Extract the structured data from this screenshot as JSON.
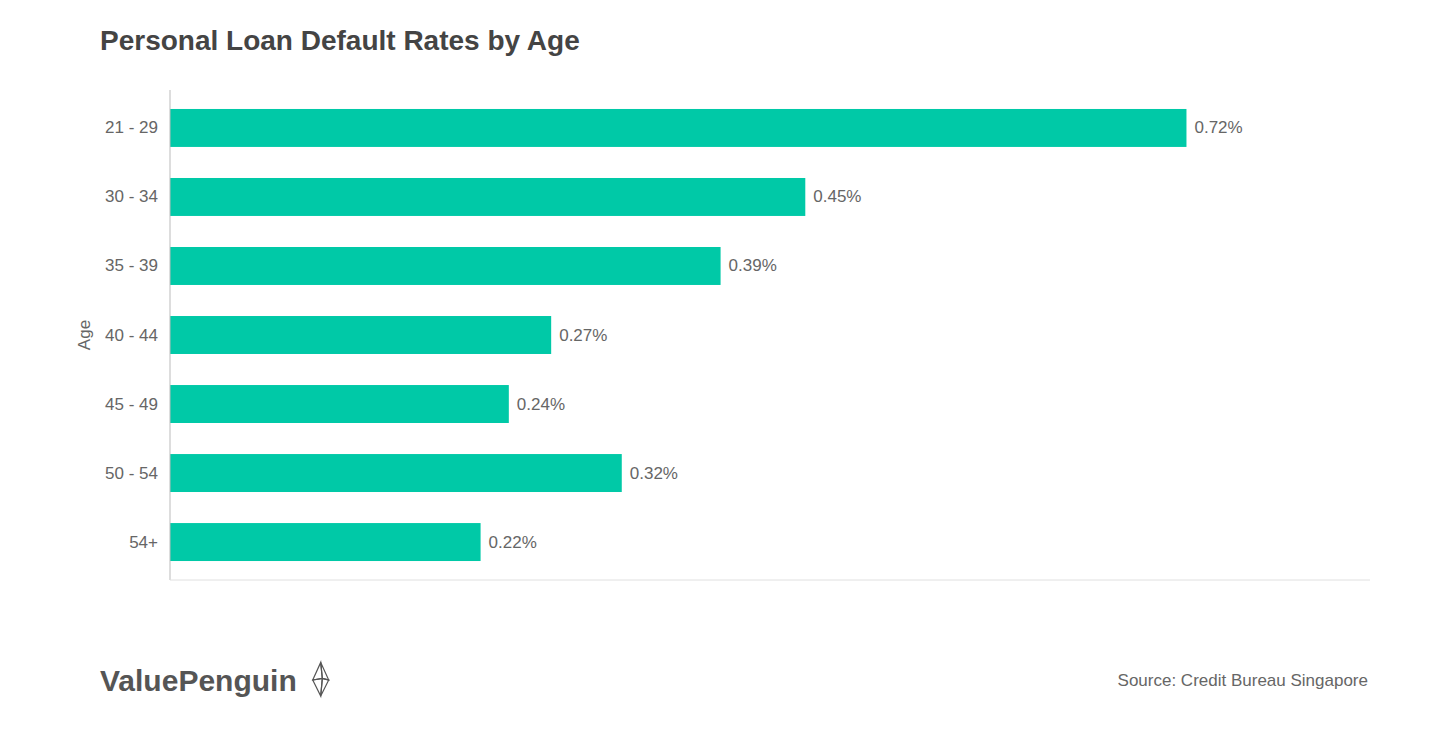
{
  "chart_data": {
    "type": "bar",
    "orientation": "horizontal",
    "title": "Personal Loan Default Rates by Age",
    "categories": [
      "21 - 29",
      "30 - 34",
      "35 - 39",
      "40 - 44",
      "45 - 49",
      "50 - 54",
      "54+"
    ],
    "values": [
      0.72,
      0.45,
      0.39,
      0.27,
      0.24,
      0.32,
      0.22
    ],
    "value_labels": [
      "0.72%",
      "0.45%",
      "0.39%",
      "0.27%",
      "0.24%",
      "0.32%",
      "0.22%"
    ],
    "data_labels": true,
    "color": "#00C9A7",
    "ylabel": "Age",
    "xlim": [
      0,
      0.85
    ],
    "xticks": [],
    "tick_labels": "y",
    "grid": false,
    "annotations": [
      "ValuePenguin",
      "Source: Credit Bureau Singapore"
    ]
  }
}
